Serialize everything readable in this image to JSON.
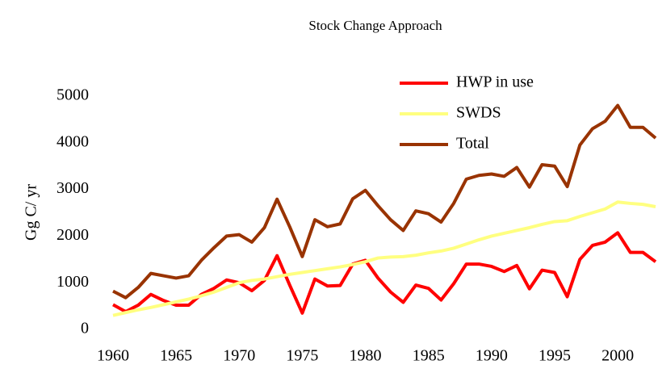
{
  "chart_data": {
    "type": "line",
    "title": "Stock Change Approach",
    "y_label": "Gg C/ yr",
    "x": [
      1960,
      1961,
      1962,
      1963,
      1964,
      1965,
      1966,
      1967,
      1968,
      1969,
      1970,
      1971,
      1972,
      1973,
      1974,
      1975,
      1976,
      1977,
      1978,
      1979,
      1980,
      1981,
      1982,
      1983,
      1984,
      1985,
      1986,
      1987,
      1988,
      1989,
      1990,
      1991,
      1992,
      1993,
      1994,
      1995,
      1996,
      1997,
      1998,
      1999,
      2000,
      2001,
      2002,
      2003
    ],
    "series": [
      {
        "name": "HWP in use",
        "color": "#ff0000",
        "values": [
          530,
          380,
          520,
          750,
          620,
          520,
          520,
          750,
          880,
          1060,
          1000,
          830,
          1050,
          1580,
          950,
          350,
          1080,
          930,
          940,
          1400,
          1480,
          1100,
          800,
          580,
          950,
          880,
          630,
          980,
          1400,
          1400,
          1350,
          1240,
          1370,
          870,
          1270,
          1220,
          700,
          1500,
          1800,
          1870,
          2070,
          1650,
          1650,
          1450
        ]
      },
      {
        "name": "SWDS",
        "color": "#ffff80",
        "values": [
          300,
          360,
          420,
          470,
          530,
          590,
          650,
          720,
          800,
          900,
          1000,
          1050,
          1080,
          1130,
          1180,
          1220,
          1260,
          1300,
          1340,
          1390,
          1450,
          1530,
          1550,
          1560,
          1590,
          1640,
          1680,
          1740,
          1830,
          1920,
          2000,
          2060,
          2120,
          2180,
          2250,
          2310,
          2330,
          2420,
          2500,
          2580,
          2730,
          2700,
          2680,
          2630
        ]
      },
      {
        "name": "Total",
        "color": "#993300",
        "values": [
          820,
          680,
          900,
          1200,
          1150,
          1100,
          1150,
          1480,
          1750,
          2000,
          2030,
          1870,
          2180,
          2790,
          2200,
          1560,
          2350,
          2200,
          2260,
          2800,
          2980,
          2650,
          2350,
          2120,
          2540,
          2480,
          2300,
          2700,
          3220,
          3300,
          3330,
          3280,
          3470,
          3050,
          3530,
          3500,
          3060,
          3950,
          4300,
          4460,
          4800,
          4330,
          4330,
          4100
        ]
      }
    ],
    "xlim": [
      1960,
      2003
    ],
    "xticks": [
      1960,
      1965,
      1970,
      1975,
      1980,
      1985,
      1990,
      1995,
      2000
    ],
    "ylim": [
      0,
      5000
    ],
    "yticks": [
      0,
      1000,
      2000,
      3000,
      4000,
      5000
    ],
    "grid": false
  }
}
